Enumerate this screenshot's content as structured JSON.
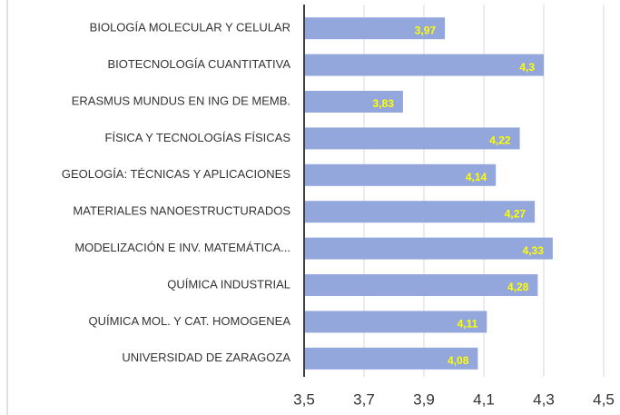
{
  "chart_data": {
    "type": "bar",
    "orientation": "horizontal",
    "categories": [
      "BIOLOGÍA MOLECULAR Y CELULAR",
      "BIOTECNOLOGÍA CUANTITATIVA",
      "ERASMUS MUNDUS EN ING DE MEMB.",
      "FÍSICA Y TECNOLOGÍAS FÍSICAS",
      "GEOLOGÍA: TÉCNICAS Y APLICACIONES",
      "MATERIALES NANOESTRUCTURADOS",
      "MODELIZACIÓN E INV. MATEMÁTICA...",
      "QUÍMICA INDUSTRIAL",
      "QUÍMICA MOL. Y CAT. HOMOGENEA",
      "UNIVERSIDAD DE ZARAGOZA"
    ],
    "values": [
      3.97,
      4.3,
      3.83,
      4.22,
      4.14,
      4.27,
      4.33,
      4.28,
      4.11,
      4.08
    ],
    "value_labels": [
      "3,97",
      "4,3",
      "3,83",
      "4,22",
      "4,14",
      "4,27",
      "4,33",
      "4,28",
      "4,11",
      "4,08"
    ],
    "color": "#94a7dc",
    "value_label_color": "#ffff00",
    "xlim": [
      3.5,
      4.5
    ],
    "xticks": [
      {
        "value": 3.5,
        "label": "3,5"
      },
      {
        "value": 3.7,
        "label": "3,7"
      },
      {
        "value": 3.9,
        "label": "3,9"
      },
      {
        "value": 4.1,
        "label": "4,1"
      },
      {
        "value": 4.3,
        "label": "4,3"
      },
      {
        "value": 4.5,
        "label": "4,5"
      }
    ],
    "grid": true
  }
}
